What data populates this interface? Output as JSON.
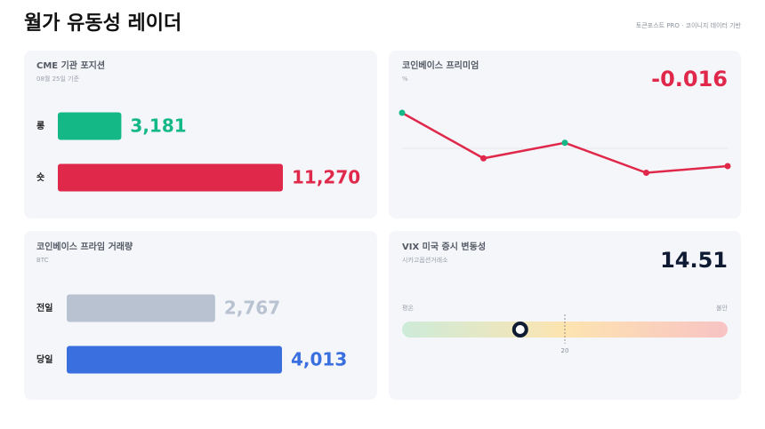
{
  "header": {
    "title": "월가 유동성 레이더",
    "source": "토큰포스트 PRO · 코이니지 데이터 기반"
  },
  "cards": [
    {
      "title": "CME 기관 포지션",
      "subtitle": "08월 25일 기준",
      "bars": {
        "categories": [
          "롱",
          "숏"
        ],
        "values": [
          3181,
          11270
        ],
        "value_labels": [
          "3,181",
          "11,270"
        ],
        "colors": [
          "#14b886",
          "#e0284a"
        ]
      }
    },
    {
      "title": "코인베이스 프리미엄",
      "subtitle": "%",
      "chart": {
        "type": "line",
        "values": [
          0.032,
          -0.009,
          0.005,
          -0.022,
          -0.016
        ],
        "ylim": [
          -0.03,
          0.04
        ],
        "line_color": "#e0284a",
        "positive_color": "#14b886",
        "negative_color": "#e0284a"
      }
    },
    {
      "title": "코인베이스 프라임 거래량",
      "subtitle": "BTC",
      "bars": {
        "categories": [
          "전일",
          "당일"
        ],
        "values": [
          2767,
          4013
        ],
        "value_labels": [
          "2,767",
          "4,013"
        ],
        "colors": [
          "#b8c2d1",
          "#3a6fe0"
        ]
      }
    },
    {
      "title": "VIX 미국 증시 변동성",
      "subtitle": "시카고옵션거래소",
      "gauge": {
        "value": 14.51,
        "xlim": [
          0,
          40
        ],
        "xticks": [
          20
        ],
        "low_label": "평온",
        "high_label": "불안"
      }
    }
  ]
}
